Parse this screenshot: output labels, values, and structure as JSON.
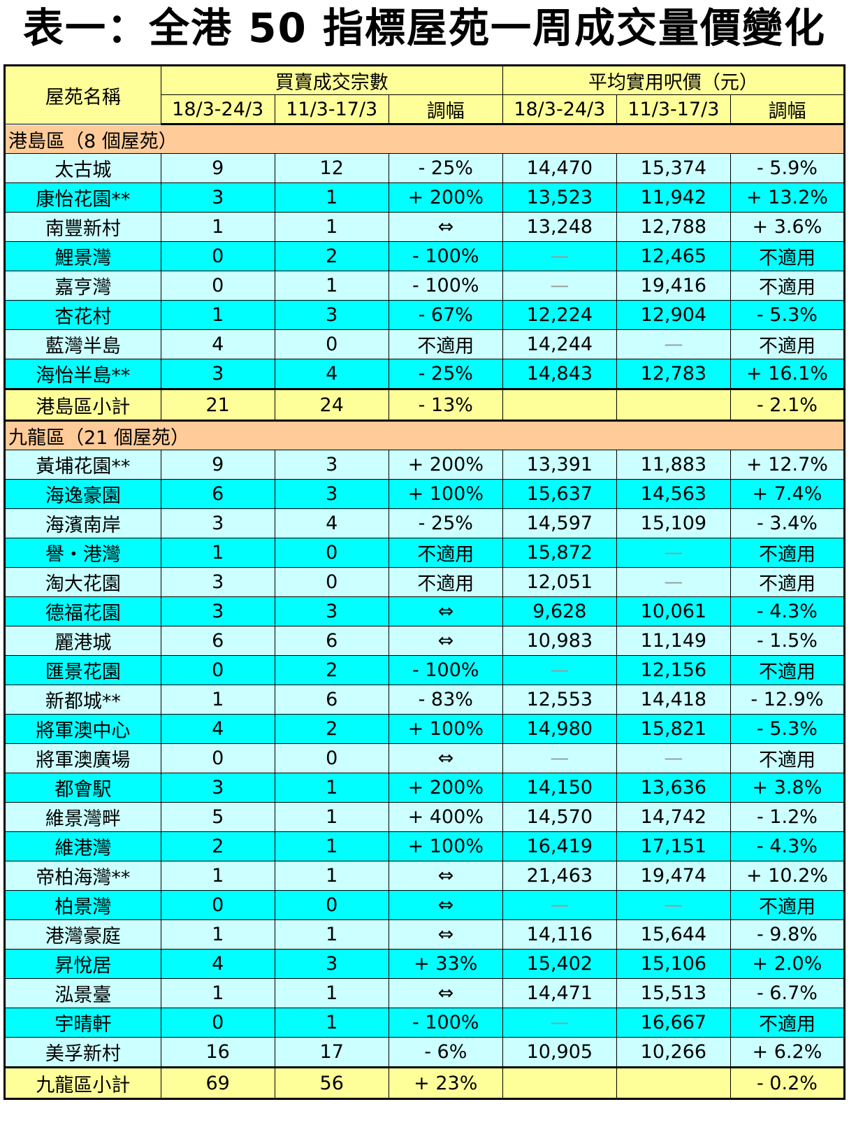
{
  "title": "表一：全港 50 指標屋苑一周成交量價變化",
  "header": {
    "estate_col": "屋苑名稱",
    "volume_group": "買賣成交宗數",
    "price_group": "平均實用呎價（元）",
    "period_current": "18/3-24/3",
    "period_previous": "11/3-17/3",
    "change": "調幅"
  },
  "regions": [
    {
      "name": "港島區（8 個屋苑）",
      "rows": [
        {
          "estate": "太古城",
          "vol_cur": "9",
          "vol_prev": "12",
          "vol_chg": "- 25%",
          "price_cur": "14,470",
          "price_prev": "15,374",
          "price_chg": "- 5.9%"
        },
        {
          "estate": "康怡花園**",
          "vol_cur": "3",
          "vol_prev": "1",
          "vol_chg": "+ 200%",
          "price_cur": "13,523",
          "price_prev": "11,942",
          "price_chg": "+ 13.2%"
        },
        {
          "estate": "南豐新村",
          "vol_cur": "1",
          "vol_prev": "1",
          "vol_chg": "⇔",
          "price_cur": "13,248",
          "price_prev": "12,788",
          "price_chg": "+ 3.6%"
        },
        {
          "estate": "鯉景灣",
          "vol_cur": "0",
          "vol_prev": "2",
          "vol_chg": "- 100%",
          "price_cur": "—",
          "price_prev": "12,465",
          "price_chg": "不適用"
        },
        {
          "estate": "嘉亨灣",
          "vol_cur": "0",
          "vol_prev": "1",
          "vol_chg": "- 100%",
          "price_cur": "—",
          "price_prev": "19,416",
          "price_chg": "不適用"
        },
        {
          "estate": "杏花村",
          "vol_cur": "1",
          "vol_prev": "3",
          "vol_chg": "- 67%",
          "price_cur": "12,224",
          "price_prev": "12,904",
          "price_chg": "- 5.3%"
        },
        {
          "estate": "藍灣半島",
          "vol_cur": "4",
          "vol_prev": "0",
          "vol_chg": "不適用",
          "price_cur": "14,244",
          "price_prev": "—",
          "price_chg": "不適用"
        },
        {
          "estate": "海怡半島**",
          "vol_cur": "3",
          "vol_prev": "4",
          "vol_chg": "- 25%",
          "price_cur": "14,843",
          "price_prev": "12,783",
          "price_chg": "+ 16.1%"
        }
      ],
      "subtotal": {
        "estate": "港島區小計",
        "vol_cur": "21",
        "vol_prev": "24",
        "vol_chg": "- 13%",
        "price_cur": "",
        "price_prev": "",
        "price_chg": "- 2.1%"
      }
    },
    {
      "name": "九龍區（21 個屋苑）",
      "rows": [
        {
          "estate": "黃埔花園**",
          "vol_cur": "9",
          "vol_prev": "3",
          "vol_chg": "+ 200%",
          "price_cur": "13,391",
          "price_prev": "11,883",
          "price_chg": "+ 12.7%"
        },
        {
          "estate": "海逸豪園",
          "vol_cur": "6",
          "vol_prev": "3",
          "vol_chg": "+ 100%",
          "price_cur": "15,637",
          "price_prev": "14,563",
          "price_chg": "+ 7.4%"
        },
        {
          "estate": "海濱南岸",
          "vol_cur": "3",
          "vol_prev": "4",
          "vol_chg": "- 25%",
          "price_cur": "14,597",
          "price_prev": "15,109",
          "price_chg": "- 3.4%"
        },
        {
          "estate": "譽・港灣",
          "vol_cur": "1",
          "vol_prev": "0",
          "vol_chg": "不適用",
          "price_cur": "15,872",
          "price_prev": "—",
          "price_chg": "不適用"
        },
        {
          "estate": "淘大花園",
          "vol_cur": "3",
          "vol_prev": "0",
          "vol_chg": "不適用",
          "price_cur": "12,051",
          "price_prev": "—",
          "price_chg": "不適用"
        },
        {
          "estate": "德福花園",
          "vol_cur": "3",
          "vol_prev": "3",
          "vol_chg": "⇔",
          "price_cur": "9,628",
          "price_prev": "10,061",
          "price_chg": "- 4.3%"
        },
        {
          "estate": "麗港城",
          "vol_cur": "6",
          "vol_prev": "6",
          "vol_chg": "⇔",
          "price_cur": "10,983",
          "price_prev": "11,149",
          "price_chg": "- 1.5%"
        },
        {
          "estate": "匯景花園",
          "vol_cur": "0",
          "vol_prev": "2",
          "vol_chg": "- 100%",
          "price_cur": "—",
          "price_prev": "12,156",
          "price_chg": "不適用"
        },
        {
          "estate": "新都城**",
          "vol_cur": "1",
          "vol_prev": "6",
          "vol_chg": "- 83%",
          "price_cur": "12,553",
          "price_prev": "14,418",
          "price_chg": "- 12.9%"
        },
        {
          "estate": "將軍澳中心",
          "vol_cur": "4",
          "vol_prev": "2",
          "vol_chg": "+ 100%",
          "price_cur": "14,980",
          "price_prev": "15,821",
          "price_chg": "- 5.3%"
        },
        {
          "estate": "將軍澳廣場",
          "vol_cur": "0",
          "vol_prev": "0",
          "vol_chg": "⇔",
          "price_cur": "—",
          "price_prev": "—",
          "price_chg": "不適用"
        },
        {
          "estate": "都會駅",
          "vol_cur": "3",
          "vol_prev": "1",
          "vol_chg": "+ 200%",
          "price_cur": "14,150",
          "price_prev": "13,636",
          "price_chg": "+ 3.8%"
        },
        {
          "estate": "維景灣畔",
          "vol_cur": "5",
          "vol_prev": "1",
          "vol_chg": "+ 400%",
          "price_cur": "14,570",
          "price_prev": "14,742",
          "price_chg": "- 1.2%"
        },
        {
          "estate": "維港灣",
          "vol_cur": "2",
          "vol_prev": "1",
          "vol_chg": "+ 100%",
          "price_cur": "16,419",
          "price_prev": "17,151",
          "price_chg": "- 4.3%"
        },
        {
          "estate": "帝柏海灣**",
          "vol_cur": "1",
          "vol_prev": "1",
          "vol_chg": "⇔",
          "price_cur": "21,463",
          "price_prev": "19,474",
          "price_chg": "+ 10.2%"
        },
        {
          "estate": "柏景灣",
          "vol_cur": "0",
          "vol_prev": "0",
          "vol_chg": "⇔",
          "price_cur": "—",
          "price_prev": "—",
          "price_chg": "不適用"
        },
        {
          "estate": "港灣豪庭",
          "vol_cur": "1",
          "vol_prev": "1",
          "vol_chg": "⇔",
          "price_cur": "14,116",
          "price_prev": "15,644",
          "price_chg": "- 9.8%"
        },
        {
          "estate": "昇悅居",
          "vol_cur": "4",
          "vol_prev": "3",
          "vol_chg": "+ 33%",
          "price_cur": "15,402",
          "price_prev": "15,106",
          "price_chg": "+ 2.0%"
        },
        {
          "estate": "泓景臺",
          "vol_cur": "1",
          "vol_prev": "1",
          "vol_chg": "⇔",
          "price_cur": "14,471",
          "price_prev": "15,513",
          "price_chg": "- 6.7%"
        },
        {
          "estate": "宇晴軒",
          "vol_cur": "0",
          "vol_prev": "1",
          "vol_chg": "- 100%",
          "price_cur": "—",
          "price_prev": "16,667",
          "price_chg": "不適用"
        },
        {
          "estate": "美孚新村",
          "vol_cur": "16",
          "vol_prev": "17",
          "vol_chg": "- 6%",
          "price_cur": "10,905",
          "price_prev": "10,266",
          "price_chg": "+ 6.2%"
        }
      ],
      "subtotal": {
        "estate": "九龍區小計",
        "vol_cur": "69",
        "vol_prev": "56",
        "vol_chg": "+ 23%",
        "price_cur": "",
        "price_prev": "",
        "price_chg": "- 0.2%"
      }
    }
  ],
  "colors": {
    "header": "#ffff99",
    "region": "#ffcc99",
    "row_light": "#ccffff",
    "row_cyan": "#00ffff",
    "subtotal": "#ffff99"
  }
}
